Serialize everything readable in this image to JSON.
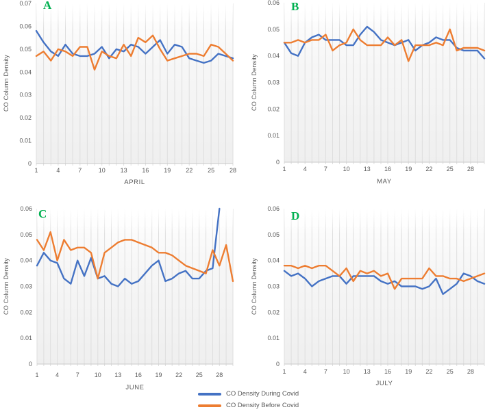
{
  "figure": {
    "description_label": ""
  },
  "colors": {
    "during_covid_line": "#4472C4",
    "before_covid_line": "#ED7D31",
    "panel_label": "#00B050",
    "axis_text": "#595959",
    "gridline": "#dedede",
    "axis_line": "#c9c9c9",
    "plot_bg_top": "#ffffff",
    "plot_bg_bottom": "#efefef"
  },
  "legend": {
    "items": [
      {
        "label": "CO Density During Covid",
        "color": "#4472C4"
      },
      {
        "label": "CO Density Before Covid",
        "color": "#ED7D31"
      }
    ]
  },
  "chart_data": [
    {
      "id": "A",
      "type": "line",
      "panel_label": "A",
      "xlabel": "APRIL",
      "ylabel": "CO Column Density",
      "ylim": [
        0,
        0.07
      ],
      "ytick_step": 0.01,
      "grid": "vertical-only",
      "days": 28,
      "xticks": [
        1,
        4,
        7,
        10,
        13,
        16,
        19,
        22,
        25,
        28
      ],
      "legend_position": "figure-bottom-center",
      "series": [
        {
          "name": "CO Density During Covid",
          "color": "#4472C4",
          "values": [
            0.058,
            0.053,
            0.049,
            0.047,
            0.052,
            0.048,
            0.047,
            0.047,
            0.048,
            0.051,
            0.046,
            0.05,
            0.049,
            0.052,
            0.051,
            0.048,
            0.051,
            0.054,
            0.048,
            0.052,
            0.051,
            0.046,
            0.045,
            0.044,
            0.045,
            0.048,
            0.047,
            0.046
          ]
        },
        {
          "name": "CO Density Before Covid",
          "color": "#ED7D31",
          "values": [
            0.047,
            0.049,
            0.045,
            0.05,
            0.049,
            0.047,
            0.051,
            0.051,
            0.041,
            0.049,
            0.047,
            0.046,
            0.052,
            0.047,
            0.055,
            0.053,
            0.056,
            0.05,
            0.045,
            0.046,
            0.047,
            0.048,
            0.048,
            0.047,
            0.052,
            0.051,
            0.048,
            0.045
          ]
        }
      ]
    },
    {
      "id": "B",
      "type": "line",
      "panel_label": "B",
      "xlabel": "MAY",
      "ylabel": "CO Column Density",
      "ylim": [
        0,
        0.06
      ],
      "ytick_step": 0.01,
      "grid": "vertical-only",
      "days": 30,
      "xticks": [
        1,
        4,
        7,
        10,
        13,
        16,
        19,
        22,
        25,
        28
      ],
      "legend_position": "figure-bottom-center",
      "series": [
        {
          "name": "CO Density During Covid",
          "color": "#4472C4",
          "values": [
            0.045,
            0.041,
            0.04,
            0.045,
            0.047,
            0.048,
            0.046,
            0.046,
            0.046,
            0.044,
            0.044,
            0.048,
            0.051,
            0.049,
            0.046,
            0.045,
            0.044,
            0.045,
            0.046,
            0.042,
            0.044,
            0.045,
            0.047,
            0.046,
            0.046,
            0.043,
            0.042,
            0.042,
            0.042,
            0.039
          ]
        },
        {
          "name": "CO Density Before Covid",
          "color": "#ED7D31",
          "values": [
            0.045,
            0.045,
            0.046,
            0.045,
            0.046,
            0.046,
            0.048,
            0.042,
            0.044,
            0.045,
            0.05,
            0.046,
            0.044,
            0.044,
            0.044,
            0.047,
            0.044,
            0.046,
            0.038,
            0.044,
            0.044,
            0.044,
            0.045,
            0.044,
            0.05,
            0.042,
            0.043,
            0.043,
            0.043,
            0.042
          ]
        }
      ]
    },
    {
      "id": "C",
      "type": "line",
      "panel_label": "C",
      "xlabel": "JUNE",
      "ylabel": "CO Column Density",
      "ylim": [
        0,
        0.06
      ],
      "ytick_step": 0.01,
      "grid": "vertical-only",
      "days": 30,
      "xticks": [
        1,
        4,
        7,
        10,
        13,
        16,
        19,
        22,
        25,
        28
      ],
      "legend_position": "figure-bottom-center",
      "series": [
        {
          "name": "CO Density During Covid",
          "color": "#4472C4",
          "values": [
            0.038,
            0.043,
            0.04,
            0.039,
            0.033,
            0.031,
            0.04,
            0.034,
            0.041,
            0.033,
            0.034,
            0.031,
            0.03,
            0.033,
            0.031,
            0.032,
            0.035,
            0.038,
            0.04,
            0.032,
            0.033,
            0.035,
            0.036,
            0.033,
            0.033,
            0.036,
            0.037,
            0.06
          ]
        },
        {
          "name": "CO Density Before Covid",
          "color": "#ED7D31",
          "values": [
            0.048,
            0.044,
            0.051,
            0.04,
            0.048,
            0.044,
            0.045,
            0.045,
            0.043,
            0.033,
            0.043,
            0.045,
            0.047,
            0.048,
            0.048,
            0.047,
            0.046,
            0.045,
            0.043,
            0.043,
            0.042,
            0.04,
            0.038,
            0.037,
            0.036,
            0.035,
            0.044,
            0.038,
            0.046,
            0.032
          ]
        }
      ]
    },
    {
      "id": "D",
      "type": "line",
      "panel_label": "D",
      "xlabel": "JULY",
      "ylabel": "CO Column Density",
      "ylim": [
        0,
        0.06
      ],
      "ytick_step": 0.01,
      "grid": "vertical-only",
      "days": 30,
      "xticks": [
        1,
        4,
        7,
        10,
        13,
        16,
        19,
        22,
        25,
        28
      ],
      "legend_position": "figure-bottom-center",
      "series": [
        {
          "name": "CO Density During Covid",
          "color": "#4472C4",
          "values": [
            0.036,
            0.034,
            0.035,
            0.033,
            0.03,
            0.032,
            0.033,
            0.034,
            0.034,
            0.031,
            0.034,
            0.034,
            0.034,
            0.034,
            0.032,
            0.031,
            0.032,
            0.03,
            0.03,
            0.03,
            0.029,
            0.03,
            0.033,
            0.027,
            0.029,
            0.031,
            0.035,
            0.034,
            0.032,
            0.031
          ]
        },
        {
          "name": "CO Density Before Covid",
          "color": "#ED7D31",
          "values": [
            0.038,
            0.038,
            0.037,
            0.038,
            0.037,
            0.038,
            0.038,
            0.036,
            0.034,
            0.037,
            0.032,
            0.036,
            0.035,
            0.036,
            0.034,
            0.035,
            0.029,
            0.033,
            0.033,
            0.033,
            0.033,
            0.037,
            0.034,
            0.034,
            0.033,
            0.033,
            0.032,
            0.033,
            0.034,
            0.035
          ]
        }
      ]
    }
  ]
}
